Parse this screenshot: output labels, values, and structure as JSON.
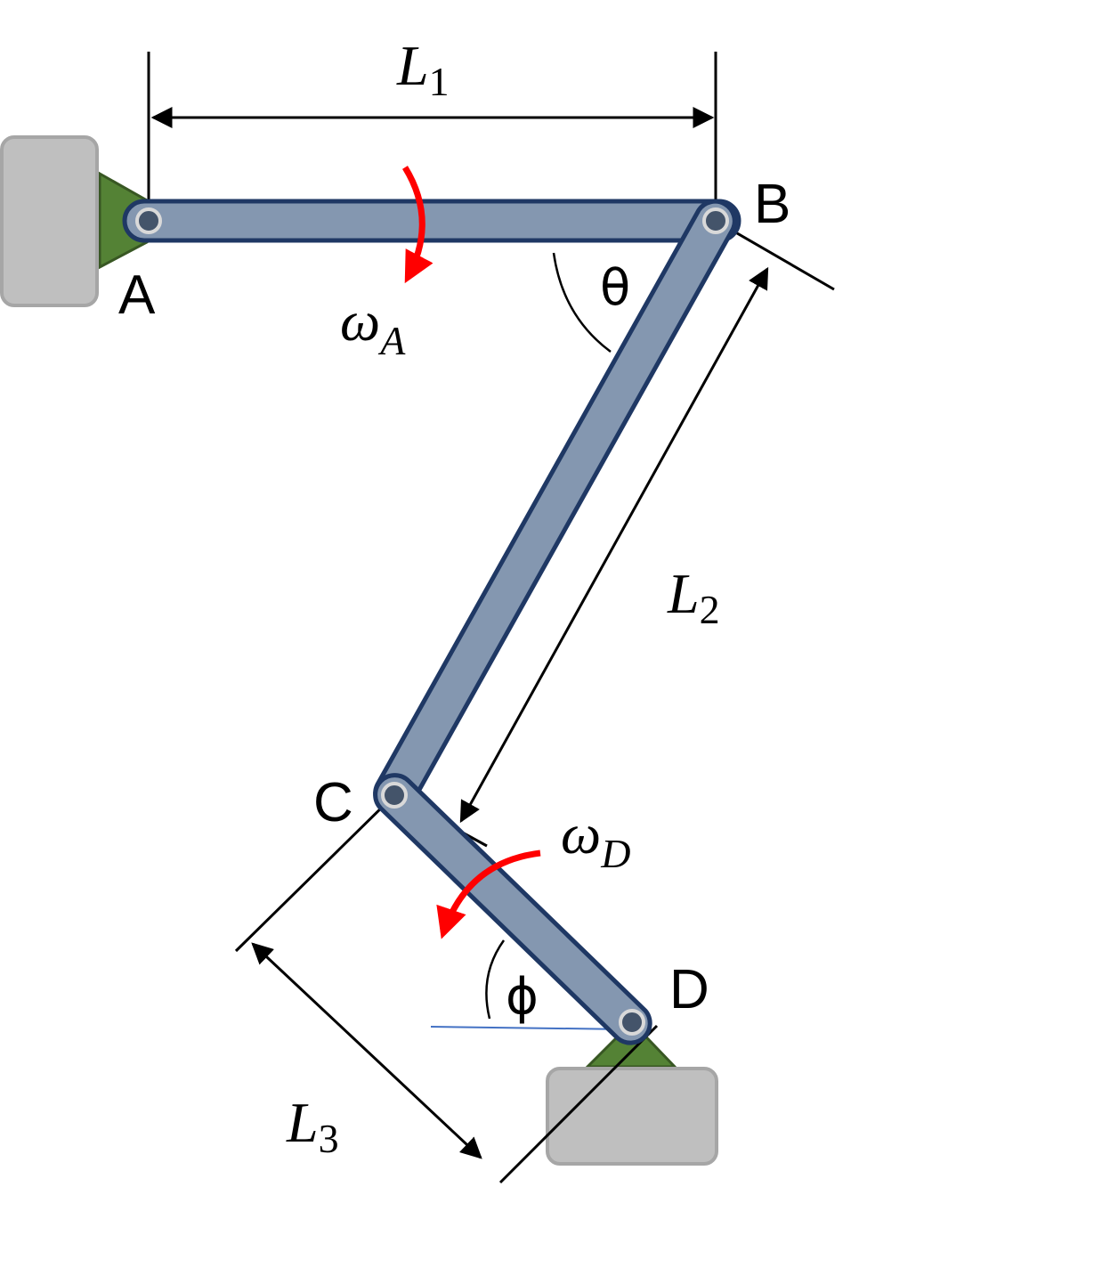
{
  "points": {
    "A": "A",
    "B": "B",
    "C": "C",
    "D": "D"
  },
  "lengths": {
    "L1": {
      "main": "L",
      "sub": "1"
    },
    "L2": {
      "main": "L",
      "sub": "2"
    },
    "L3": {
      "main": "L",
      "sub": "3"
    }
  },
  "angles": {
    "theta": "θ",
    "phi": "ϕ"
  },
  "angular_velocities": {
    "wA": {
      "main": "ω",
      "sub": "A"
    },
    "wD": {
      "main": "ω",
      "sub": "D"
    }
  },
  "colors": {
    "link_fill": "#8497b0",
    "link_outline": "#1f3864",
    "rotation_arrow": "#ff0000",
    "ground": "#bfbfbf",
    "support": "#548235",
    "reference_line": "#4472c4"
  }
}
